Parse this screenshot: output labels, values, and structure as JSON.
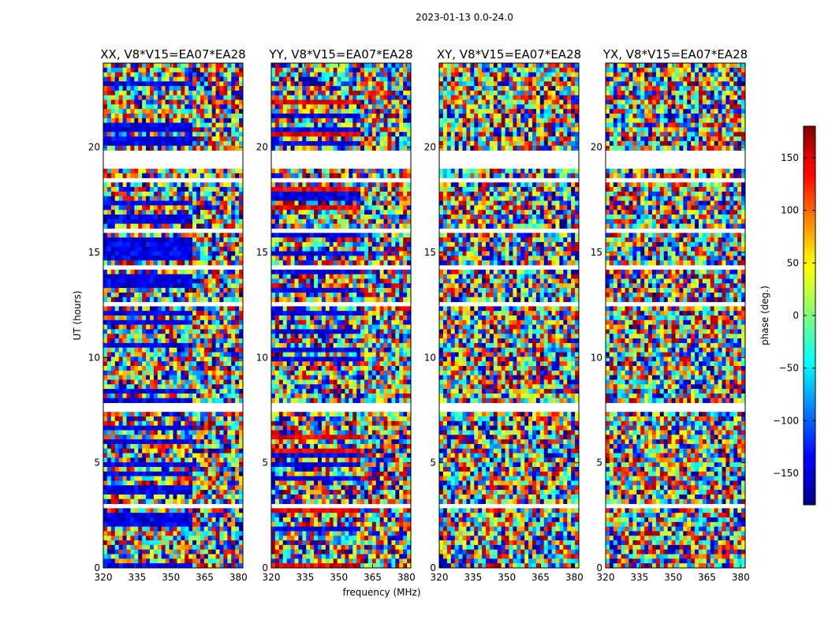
{
  "chart_data": {
    "type": "heatmap",
    "title": "2023-01-13 0.0-24.0",
    "xlabel": "frequency (MHz)",
    "ylabel": "UT (hours)",
    "xlim": [
      320,
      382
    ],
    "ylim": [
      0,
      24
    ],
    "x_ticks": [
      320,
      335,
      350,
      365,
      380
    ],
    "y_ticks": [
      0,
      5,
      10,
      15,
      20
    ],
    "panels": [
      {
        "title": "XX, V8*V15=EA07*EA28",
        "polarization": "XX"
      },
      {
        "title": "YY, V8*V15=EA07*EA28",
        "polarization": "YY"
      },
      {
        "title": "XY, V8*V15=EA07*EA28",
        "polarization": "XY"
      },
      {
        "title": "YX, V8*V15=EA07*EA28",
        "polarization": "YX"
      }
    ],
    "colorbar": {
      "label": "phase (deg.)",
      "range": [
        -180,
        180
      ],
      "ticks": [
        150,
        100,
        50,
        0,
        -50,
        -100,
        -150
      ],
      "colormap": "jet"
    },
    "flagged_gaps_ut_hours": [
      [
        18.95,
        19.9
      ],
      [
        18.3,
        18.45
      ],
      [
        7.5,
        7.75
      ],
      [
        16.0,
        16.1
      ],
      [
        14.2,
        14.3
      ],
      [
        12.5,
        12.6
      ],
      [
        5.6,
        5.7
      ],
      [
        2.9,
        3.0
      ],
      [
        0.85,
        0.95
      ]
    ]
  }
}
